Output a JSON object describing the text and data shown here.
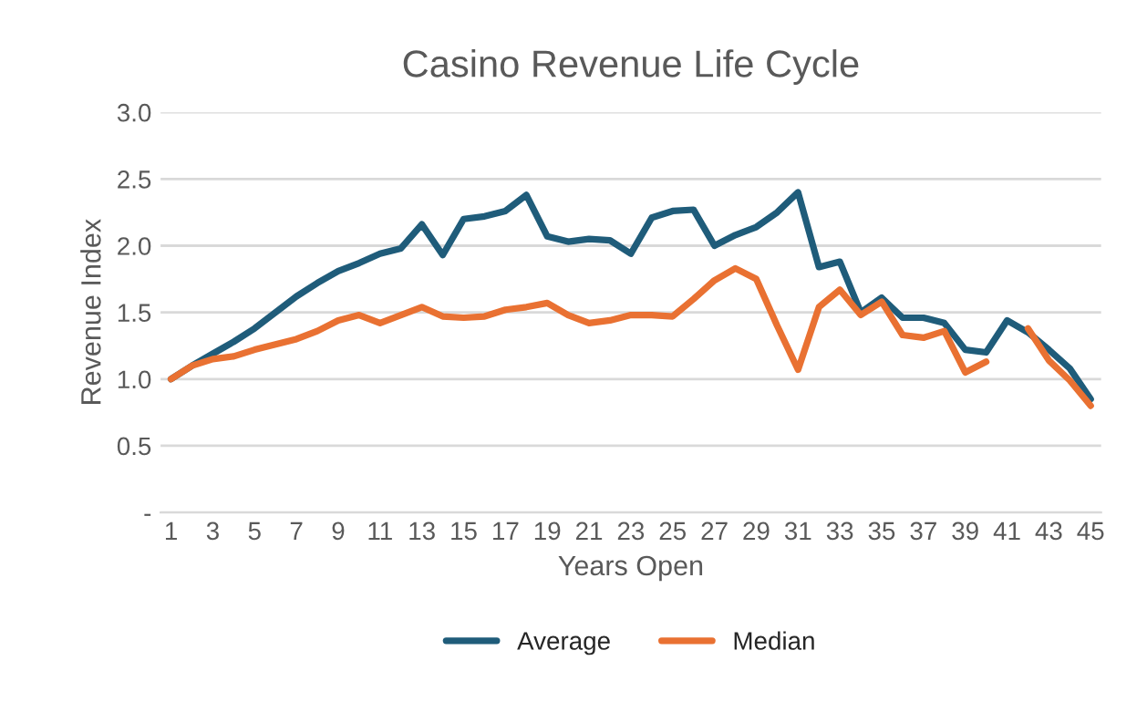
{
  "chart_data": {
    "type": "line",
    "title": "Casino Revenue Life Cycle",
    "xlabel": "Years Open",
    "ylabel": "Revenue Index",
    "categories": [
      "1",
      null,
      "3",
      null,
      "5",
      null,
      "7",
      null,
      "9",
      null,
      "11",
      null,
      "13",
      null,
      "15",
      null,
      "17",
      null,
      "19",
      null,
      "21",
      null,
      "23",
      null,
      "25",
      null,
      "27",
      null,
      "29",
      null,
      "31",
      null,
      "33",
      null,
      "35",
      null,
      "37",
      null,
      "39",
      null,
      "41",
      null,
      "43",
      null,
      "45"
    ],
    "series": [
      {
        "name": "Average",
        "color": "#1f5c7a",
        "values": [
          1.0,
          1.1,
          1.19,
          1.28,
          1.38,
          1.5,
          1.62,
          1.72,
          1.81,
          1.87,
          1.94,
          1.98,
          2.16,
          1.93,
          2.2,
          2.22,
          2.26,
          2.38,
          2.07,
          2.03,
          2.05,
          2.04,
          1.94,
          2.21,
          2.26,
          2.27,
          2.0,
          2.08,
          2.14,
          2.25,
          2.4,
          1.84,
          1.88,
          1.5,
          1.61,
          1.46,
          1.46,
          1.42,
          1.22,
          1.2,
          1.44,
          1.35,
          1.22,
          1.08,
          0.85
        ]
      },
      {
        "name": "Median",
        "color": "#e97132",
        "values": [
          1.0,
          1.1,
          1.15,
          1.17,
          1.22,
          1.26,
          1.3,
          1.36,
          1.44,
          1.48,
          1.42,
          1.48,
          1.54,
          1.47,
          1.46,
          1.47,
          1.52,
          1.54,
          1.57,
          1.48,
          1.42,
          1.44,
          1.48,
          1.48,
          1.47,
          1.6,
          1.74,
          1.83,
          1.75,
          1.4,
          1.07,
          1.54,
          1.67,
          1.48,
          1.58,
          1.33,
          1.31,
          1.36,
          1.05,
          1.13,
          null,
          1.38,
          1.14,
          0.99,
          0.8
        ]
      }
    ],
    "ylim": [
      0,
      3.0
    ],
    "yticks": [
      {
        "value": 0,
        "label": "-"
      },
      0.5,
      {
        "value": 1,
        "label": "1.0"
      },
      1.5,
      {
        "value": 2,
        "label": "2.0"
      },
      2.5,
      {
        "value": 3,
        "label": "3.0"
      }
    ],
    "grid": "y",
    "legend": "bottom",
    "marker": "none",
    "line_style": "solid"
  }
}
